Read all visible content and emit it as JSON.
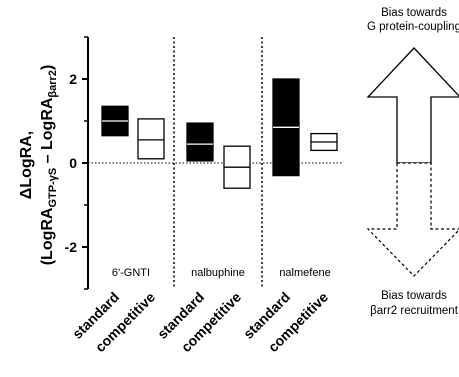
{
  "chart_data": {
    "type": "box",
    "ylabel": {
      "line1": "ΔLogRA,",
      "line2_a": "(LogRA",
      "line2_sub1": "GTP-γS",
      "line2_b": " – LogRA",
      "line2_sub2": "βarr2",
      "line2_c": ")"
    },
    "ylim": [
      -3.0,
      3.0
    ],
    "yticks": [
      -2,
      0,
      2
    ],
    "ytick_labels": [
      "-2",
      "0",
      "2"
    ],
    "zero_line": true,
    "groups": [
      {
        "name": "6'-GNTI",
        "boxes": [
          {
            "category": "standard",
            "low": 0.65,
            "median": 1.0,
            "high": 1.35,
            "fill": "#000000"
          },
          {
            "category": "competitive",
            "low": 0.1,
            "median": 0.55,
            "high": 1.05,
            "fill": "#ffffff"
          }
        ]
      },
      {
        "name": "nalbuphine",
        "boxes": [
          {
            "category": "standard",
            "low": 0.05,
            "median": 0.45,
            "high": 0.95,
            "fill": "#000000"
          },
          {
            "category": "competitive",
            "low": -0.6,
            "median": -0.1,
            "high": 0.4,
            "fill": "#ffffff"
          }
        ]
      },
      {
        "name": "nalmefene",
        "boxes": [
          {
            "category": "standard",
            "low": -0.3,
            "median": 0.85,
            "high": 2.0,
            "fill": "#000000"
          },
          {
            "category": "competitive",
            "low": 0.3,
            "median": 0.5,
            "high": 0.7,
            "fill": "#ffffff"
          }
        ]
      }
    ],
    "annotations": {
      "top_line1": "Bias towards",
      "top_line2": "G protein-coupling",
      "bottom_line1": "Bias towards",
      "bottom_line2": "βarr2 recruitment"
    }
  }
}
